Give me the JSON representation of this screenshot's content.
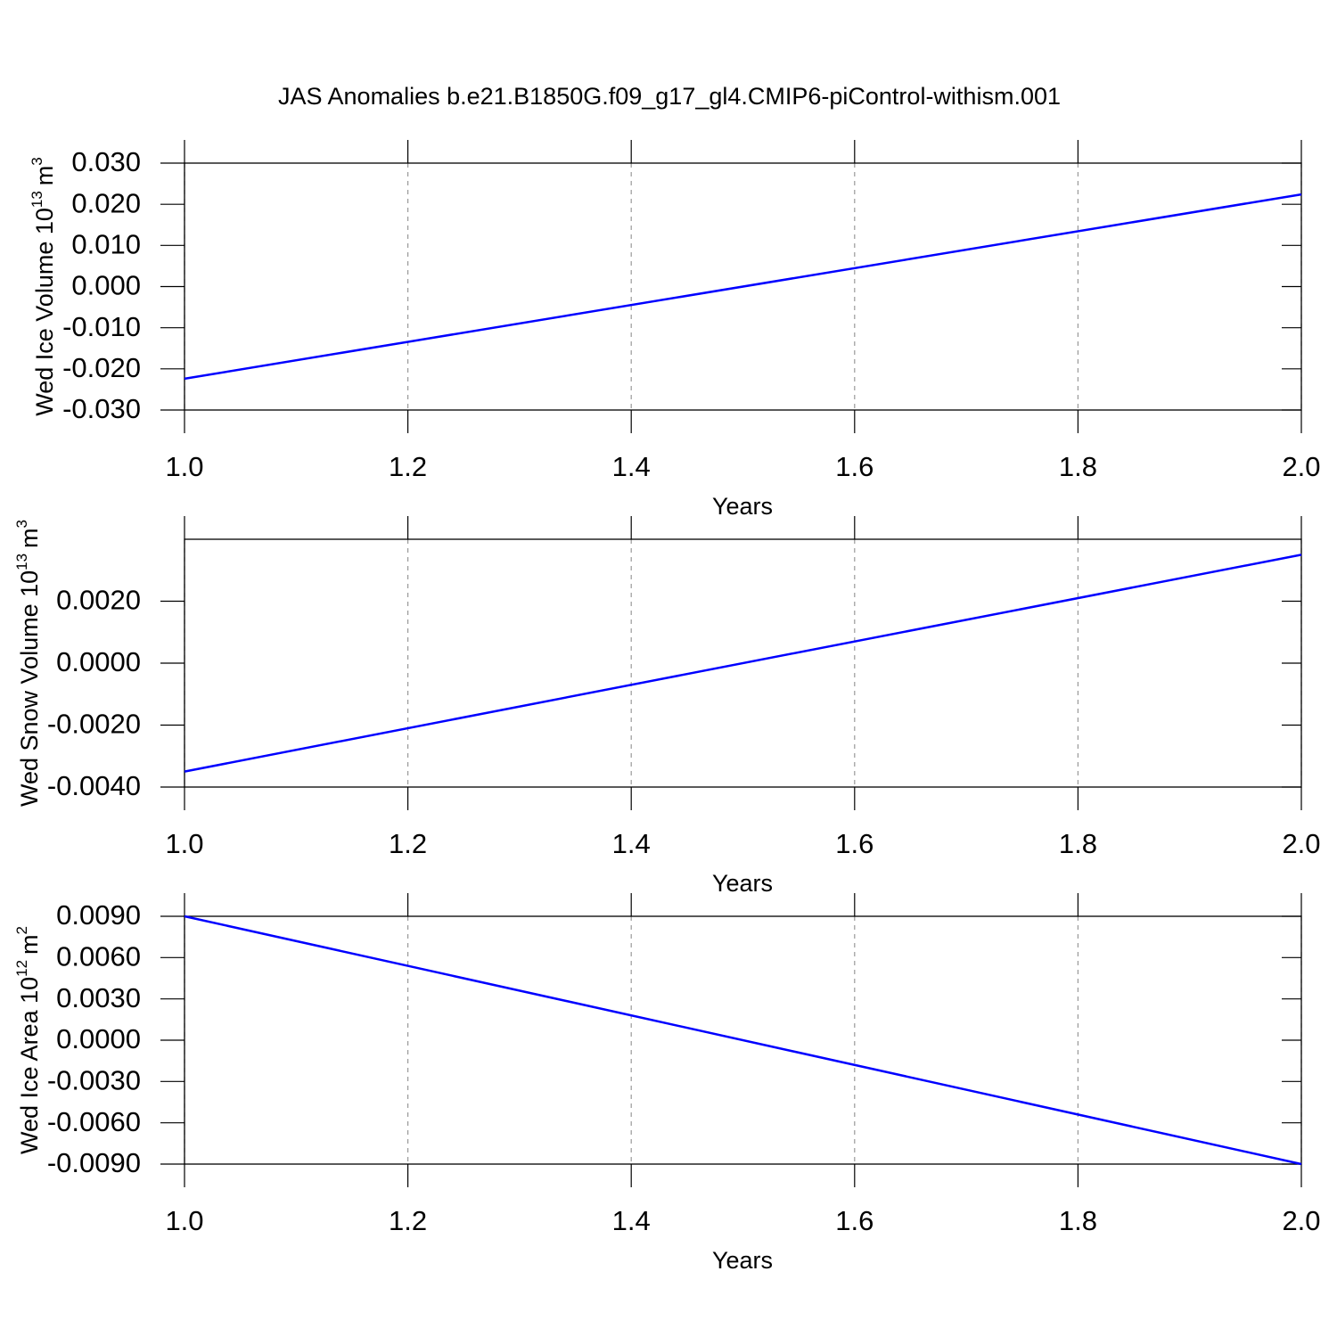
{
  "title": "JAS Anomalies b.e21.B1850G.f09_g17_gl4.CMIP6-piControl-withism.001",
  "chart_data": [
    {
      "type": "line",
      "x": [
        1,
        2
      ],
      "values": [
        -0.0224,
        0.0224
      ],
      "color": "#0000ff",
      "xlim": [
        1,
        2
      ],
      "xticks": [
        {
          "value": 1,
          "label": "1.0"
        },
        1.2,
        1.4,
        1.6,
        1.8,
        {
          "value": 2,
          "label": "2.0"
        }
      ],
      "ylim": [
        -0.03,
        0.03
      ],
      "yticks": [
        {
          "value": 0.03,
          "label": "0.030"
        },
        {
          "value": 0.02,
          "label": "0.020"
        },
        {
          "value": 0.01,
          "label": "0.010"
        },
        {
          "value": 0,
          "label": "0.000"
        },
        {
          "value": -0.01,
          "label": "-0.010"
        },
        {
          "value": -0.02,
          "label": "-0.020"
        },
        {
          "value": -0.03,
          "label": "-0.030"
        }
      ],
      "xlabel": "Years",
      "ylabel": [
        "Wed Ice Volume 10",
        "13",
        "m",
        "3"
      ],
      "grid": true
    },
    {
      "type": "line",
      "x": [
        1,
        2
      ],
      "values": [
        -0.0035,
        0.0035
      ],
      "color": "#0000ff",
      "xlim": [
        1,
        2
      ],
      "xticks": [
        {
          "value": 1,
          "label": "1.0"
        },
        1.2,
        1.4,
        1.6,
        1.8,
        {
          "value": 2,
          "label": "2.0"
        }
      ],
      "ylim": [
        -0.004,
        0.004
      ],
      "yticks": [
        {
          "value": 0.002,
          "label": "0.0020"
        },
        {
          "value": 0,
          "label": "0.0000"
        },
        {
          "value": -0.002,
          "label": "-0.0020"
        },
        {
          "value": -0.004,
          "label": "-0.0040"
        }
      ],
      "xlabel": "Years",
      "ylabel": [
        "Wed Snow Volume 10",
        "13",
        "m",
        "3"
      ],
      "grid": true
    },
    {
      "type": "line",
      "x": [
        1,
        2
      ],
      "values": [
        0.009,
        -0.009
      ],
      "color": "#0000ff",
      "xlim": [
        1,
        2
      ],
      "xticks": [
        {
          "value": 1,
          "label": "1.0"
        },
        1.2,
        1.4,
        1.6,
        1.8,
        {
          "value": 2,
          "label": "2.0"
        }
      ],
      "ylim": [
        -0.009,
        0.009
      ],
      "yticks": [
        {
          "value": 0.009,
          "label": "0.0090"
        },
        {
          "value": 0.006,
          "label": "0.0060"
        },
        {
          "value": 0.003,
          "label": "0.0030"
        },
        {
          "value": 0,
          "label": "0.0000"
        },
        {
          "value": -0.003,
          "label": "-0.0030"
        },
        {
          "value": -0.006,
          "label": "-0.0060"
        },
        {
          "value": -0.009,
          "label": "-0.0090"
        }
      ],
      "xlabel": "Years",
      "ylabel": [
        "Wed Ice Area 10",
        "12",
        "m",
        "2"
      ],
      "grid": true
    }
  ]
}
